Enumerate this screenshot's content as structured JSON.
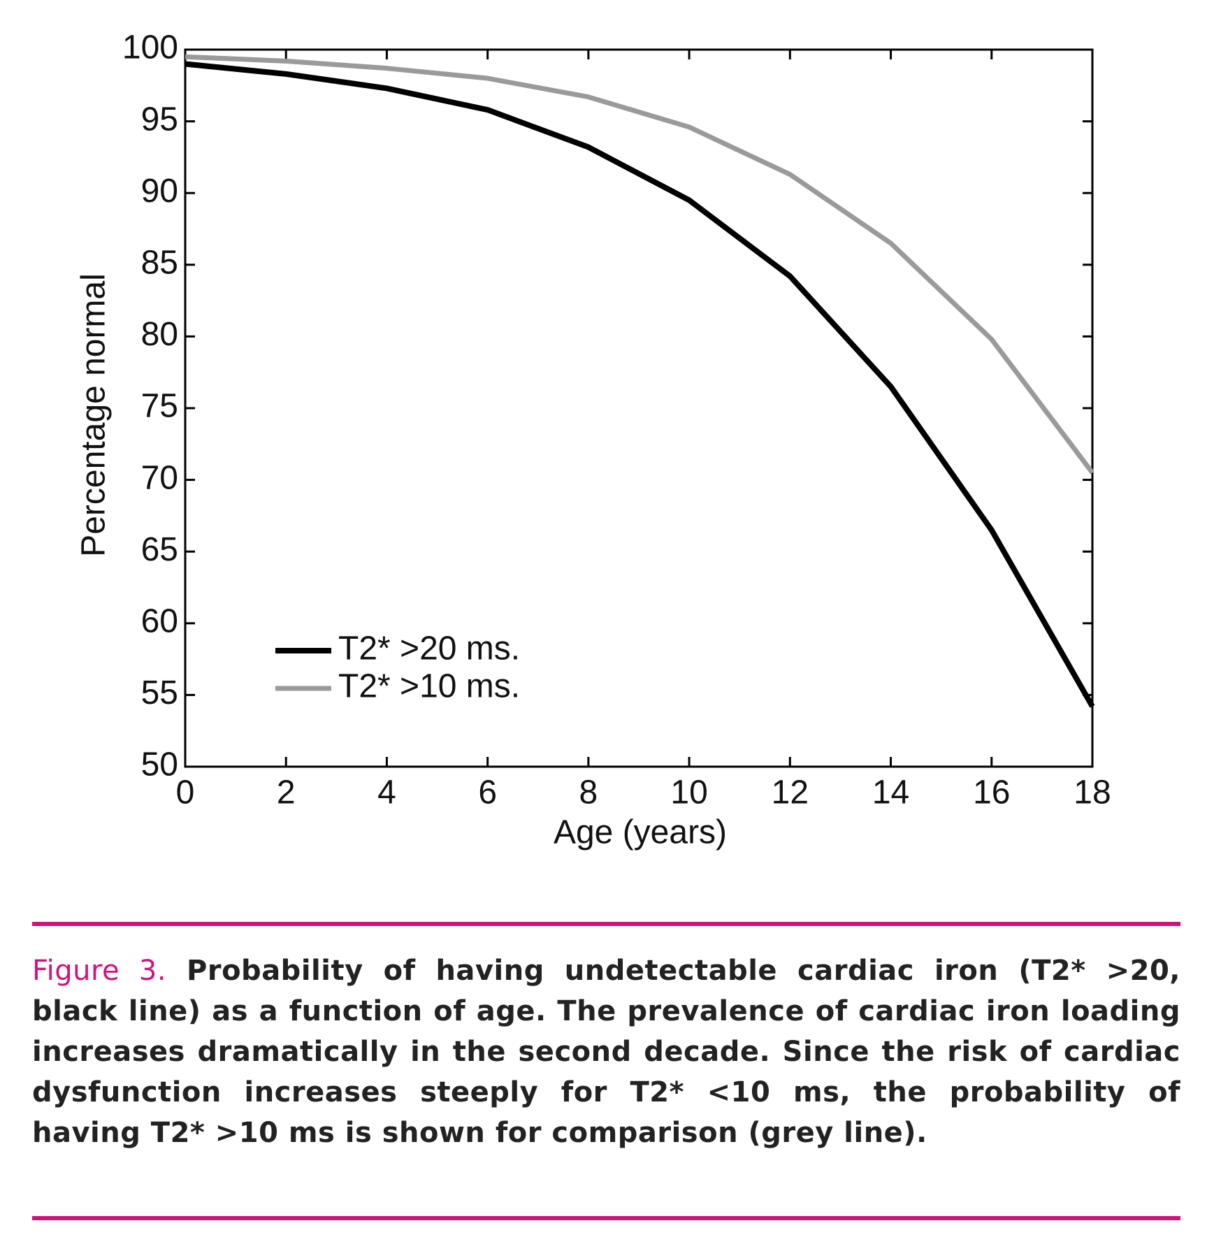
{
  "chart_data": {
    "type": "line",
    "xlabel": "Age (years)",
    "ylabel": "Percentage normal",
    "x": [
      0,
      2,
      4,
      6,
      8,
      10,
      12,
      14,
      16,
      18
    ],
    "series": [
      {
        "name": "T2* >20 ms.",
        "color": "#000000",
        "values": [
          99,
          98.3,
          97.3,
          95.8,
          93.2,
          89.5,
          84.2,
          76.5,
          66.5,
          54.2
        ]
      },
      {
        "name": "T2* >10 ms.",
        "color": "#9a9a9a",
        "values": [
          99.5,
          99.2,
          98.7,
          98,
          96.7,
          94.6,
          91.3,
          86.5,
          79.8,
          70.5
        ]
      }
    ],
    "xlim": [
      0,
      18
    ],
    "xticks": [
      0,
      2,
      4,
      6,
      8,
      10,
      12,
      14,
      16,
      18
    ],
    "ylim": [
      50,
      100
    ],
    "yticks": [
      50,
      55,
      60,
      65,
      70,
      75,
      80,
      85,
      90,
      95,
      100
    ],
    "grid": false,
    "legend": "lower left"
  },
  "caption": {
    "label": "Figure 3.",
    "text": "Probability of having undetectable cardiac iron (T2* >20, black line) as a function of age.  The prevalence of cardiac iron loading increases dramatically in the second decade. Since the risk of cardiac dysfunction increases steeply for T2* <10 ms, the probability of having T2* >10 ms is shown for comparison (grey line)."
  }
}
